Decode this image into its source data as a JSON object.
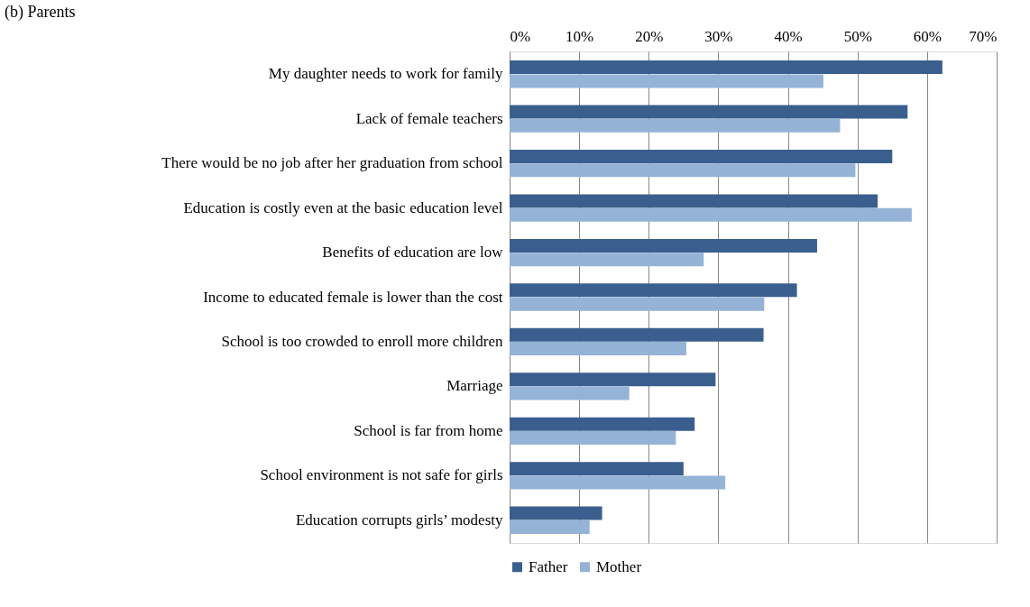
{
  "chart_data": {
    "type": "bar",
    "orientation": "horizontal",
    "title": "(b) Parents",
    "categories": [
      "My daughter needs to work for family",
      "Lack of female teachers",
      "There would be no job after her graduation from school",
      "Education is costly even at the basic education level",
      "Benefits of education are low",
      "Income to educated female is lower than the cost",
      "School is too crowded to enroll more children",
      "Marriage",
      "School is far from home",
      "School environment is not safe for girls",
      "Education corrupts girls’ modesty"
    ],
    "series": [
      {
        "name": "Father",
        "color": "#3a5f8f",
        "values": [
          62.2,
          57.2,
          55.0,
          52.9,
          44.2,
          41.3,
          36.5,
          29.6,
          26.6,
          25.0,
          13.3
        ]
      },
      {
        "name": "Mother",
        "color": "#95b3d7",
        "values": [
          45.1,
          47.5,
          49.7,
          57.8,
          27.9,
          36.6,
          25.4,
          17.2,
          23.9,
          31.0,
          11.5
        ]
      }
    ],
    "xlim": [
      0,
      70
    ],
    "xticks": [
      {
        "value": 0,
        "label": "0%"
      },
      {
        "value": 10,
        "label": "10%"
      },
      {
        "value": 20,
        "label": "20%"
      },
      {
        "value": 30,
        "label": "30%"
      },
      {
        "value": 40,
        "label": "40%"
      },
      {
        "value": 50,
        "label": "50%"
      },
      {
        "value": 60,
        "label": "60%"
      },
      {
        "value": 70,
        "label": "70%"
      }
    ],
    "grid": "x",
    "legend": "bottom"
  }
}
